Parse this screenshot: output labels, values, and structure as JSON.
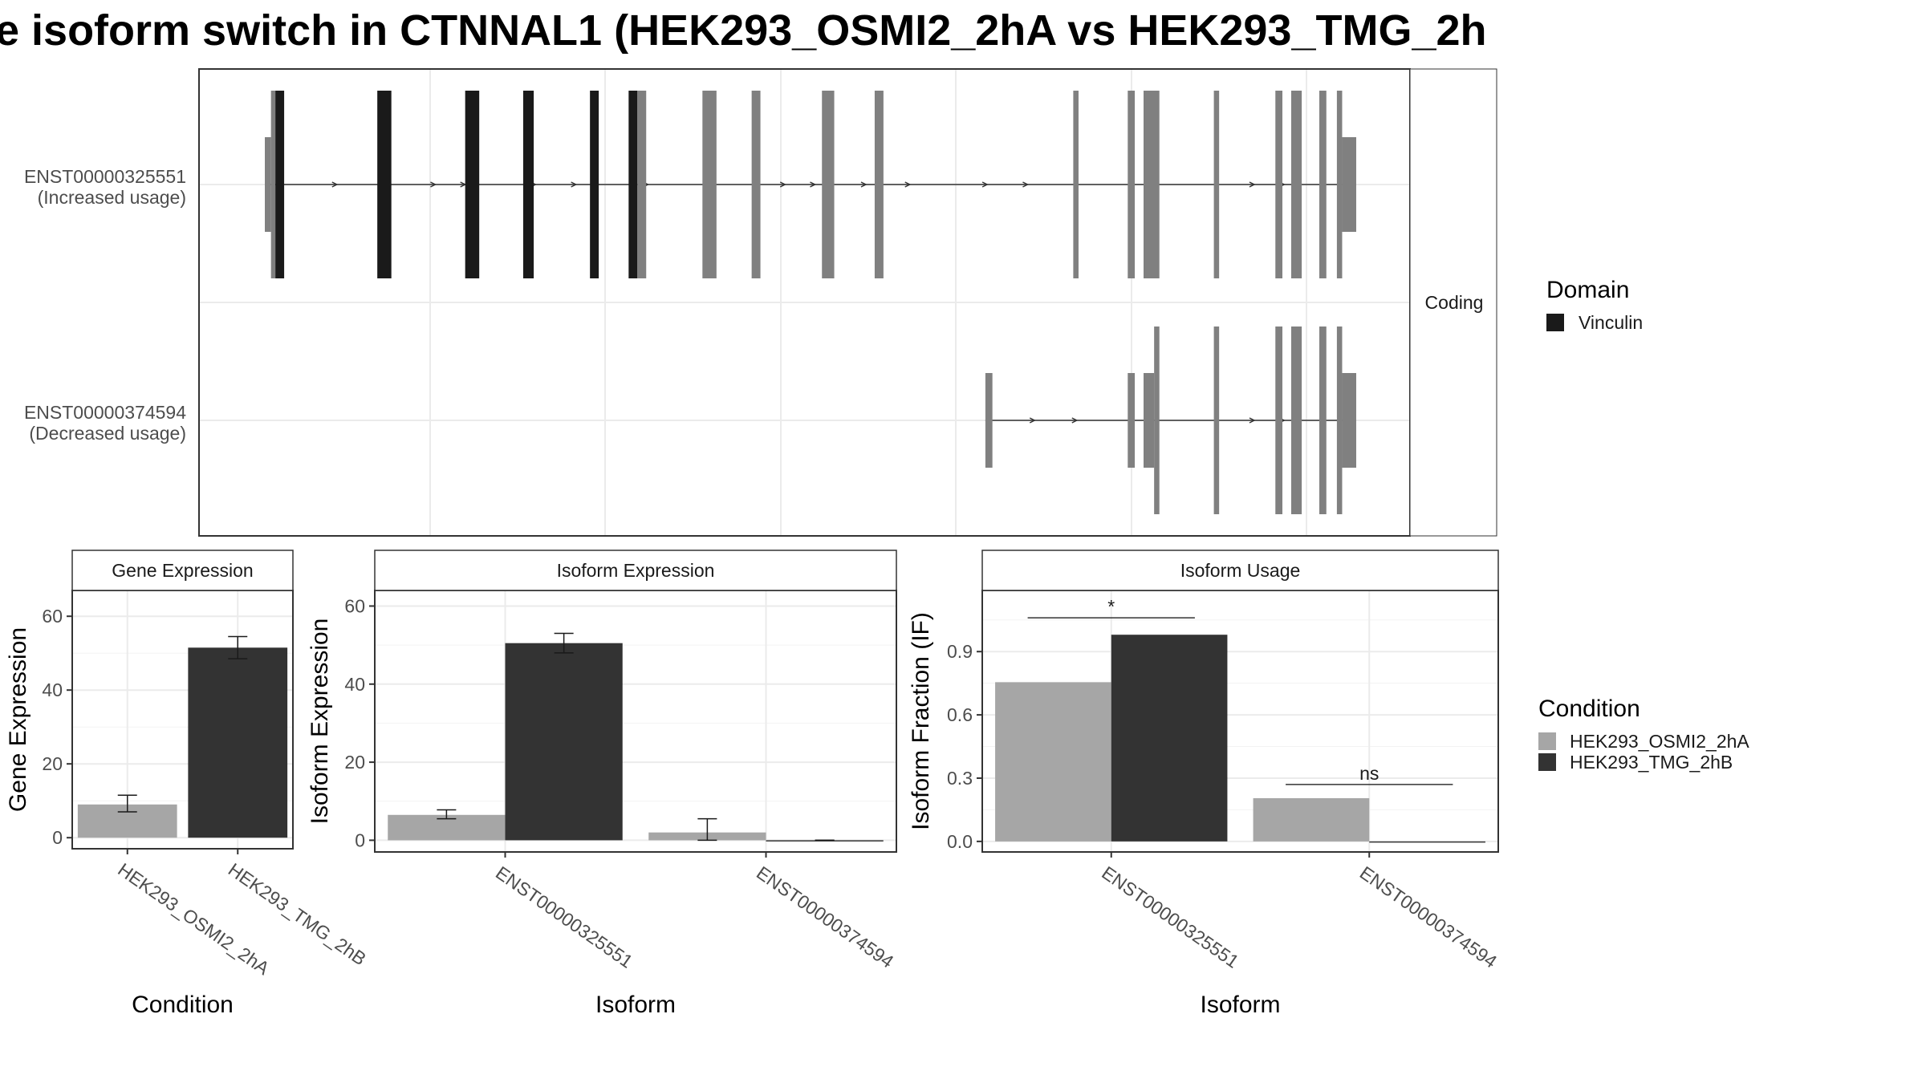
{
  "title": "e isoform switch in CTNNAL1 (HEK293_OSMI2_2hA vs HEK293_TMG_2h",
  "colors": {
    "osmi": "#a6a6a6",
    "tmg": "#333333",
    "domain": "#1a1a1a",
    "exon": "#808080",
    "grid": "#ebebeb",
    "strip": "#ffffff"
  },
  "structure": {
    "strip_label": "Coding",
    "legend_title": "Domain",
    "legend_item": "Vinculin",
    "isoforms": [
      {
        "id": "ENST00000325551",
        "usage": "(Increased usage)",
        "exons": [
          {
            "start": 0.0,
            "end": 0.35,
            "kind": "utr",
            "color": "exon"
          },
          {
            "start": 0.35,
            "end": 0.6,
            "kind": "cds",
            "color": "exon"
          },
          {
            "start": 0.6,
            "end": 1.1,
            "kind": "cds",
            "color": "domain"
          },
          {
            "start": 6.4,
            "end": 7.2,
            "kind": "cds",
            "color": "domain"
          },
          {
            "start": 11.4,
            "end": 12.2,
            "kind": "cds",
            "color": "domain"
          },
          {
            "start": 14.7,
            "end": 15.3,
            "kind": "cds",
            "color": "domain"
          },
          {
            "start": 18.5,
            "end": 19.0,
            "kind": "cds",
            "color": "domain"
          },
          {
            "start": 20.7,
            "end": 21.2,
            "kind": "cds",
            "color": "domain"
          },
          {
            "start": 21.2,
            "end": 21.7,
            "kind": "cds",
            "color": "exon"
          },
          {
            "start": 24.9,
            "end": 25.7,
            "kind": "cds",
            "color": "exon"
          },
          {
            "start": 27.7,
            "end": 28.2,
            "kind": "cds",
            "color": "exon"
          },
          {
            "start": 31.7,
            "end": 32.4,
            "kind": "cds",
            "color": "exon"
          },
          {
            "start": 34.7,
            "end": 35.2,
            "kind": "cds",
            "color": "exon"
          },
          {
            "start": 46.0,
            "end": 46.3,
            "kind": "cds",
            "color": "exon"
          },
          {
            "start": 49.1,
            "end": 49.5,
            "kind": "cds",
            "color": "exon"
          },
          {
            "start": 50.0,
            "end": 50.9,
            "kind": "cds",
            "color": "exon"
          },
          {
            "start": 54.0,
            "end": 54.3,
            "kind": "cds",
            "color": "exon"
          },
          {
            "start": 57.5,
            "end": 57.9,
            "kind": "cds",
            "color": "exon"
          },
          {
            "start": 58.4,
            "end": 59.0,
            "kind": "cds",
            "color": "exon"
          },
          {
            "start": 60.0,
            "end": 60.4,
            "kind": "cds",
            "color": "exon"
          },
          {
            "start": 61.0,
            "end": 61.3,
            "kind": "cds",
            "color": "exon"
          },
          {
            "start": 61.3,
            "end": 62.1,
            "kind": "utr",
            "color": "exon"
          }
        ],
        "arrows": [
          4.1,
          9.7,
          11.4,
          15.4,
          17.7,
          21.8,
          29.6,
          31.3,
          34.2,
          36.7,
          41.1,
          43.4,
          56.3,
          58.0
        ]
      },
      {
        "id": "ENST00000374594",
        "usage": "(Decreased usage)",
        "exons": [
          {
            "start": 41.0,
            "end": 41.4,
            "kind": "utr",
            "color": "exon"
          },
          {
            "start": 49.1,
            "end": 49.5,
            "kind": "utr",
            "color": "exon"
          },
          {
            "start": 50.0,
            "end": 50.6,
            "kind": "utr",
            "color": "exon"
          },
          {
            "start": 50.6,
            "end": 50.9,
            "kind": "cds",
            "color": "exon"
          },
          {
            "start": 54.0,
            "end": 54.3,
            "kind": "cds",
            "color": "exon"
          },
          {
            "start": 57.5,
            "end": 57.9,
            "kind": "cds",
            "color": "exon"
          },
          {
            "start": 58.4,
            "end": 59.0,
            "kind": "cds",
            "color": "exon"
          },
          {
            "start": 60.0,
            "end": 60.4,
            "kind": "cds",
            "color": "exon"
          },
          {
            "start": 61.0,
            "end": 61.3,
            "kind": "cds",
            "color": "exon"
          },
          {
            "start": 61.3,
            "end": 62.1,
            "kind": "utr",
            "color": "exon"
          }
        ],
        "arrows": [
          43.8,
          46.2,
          56.3,
          58.0
        ]
      }
    ]
  },
  "chart_data": [
    {
      "type": "bar",
      "title": "Gene Expression",
      "xlabel": "Condition",
      "ylabel": "Gene Expression",
      "categories": [
        "HEK293_OSMI2_2hA",
        "HEK293_TMG_2hB"
      ],
      "values": [
        9,
        51.5
      ],
      "error_low": [
        7,
        48.5
      ],
      "error_high": [
        11.5,
        54.5
      ],
      "ylim": [
        -3,
        67
      ],
      "yticks": [
        0,
        20,
        40,
        60
      ]
    },
    {
      "type": "bar",
      "title": "Isoform Expression",
      "xlabel": "Isoform",
      "ylabel": "Isoform Expression",
      "categories": [
        "ENST00000325551",
        "ENST00000374594"
      ],
      "series": [
        {
          "name": "HEK293_OSMI2_2hA",
          "values": [
            6.5,
            2
          ],
          "error_low": [
            5.5,
            0
          ],
          "error_high": [
            7.8,
            5.5
          ]
        },
        {
          "name": "HEK293_TMG_2hB",
          "values": [
            50.5,
            0
          ],
          "error_low": [
            48,
            0
          ],
          "error_high": [
            53,
            0
          ]
        }
      ],
      "ylim": [
        -3,
        64
      ],
      "yticks": [
        0,
        20,
        40,
        60
      ]
    },
    {
      "type": "bar",
      "title": "Isoform Usage",
      "xlabel": "Isoform",
      "ylabel": "Isoform Fraction (IF)",
      "categories": [
        "ENST00000325551",
        "ENST00000374594"
      ],
      "series": [
        {
          "name": "HEK293_OSMI2_2hA",
          "values": [
            0.755,
            0.205
          ]
        },
        {
          "name": "HEK293_TMG_2hB",
          "values": [
            0.98,
            0
          ]
        }
      ],
      "significance": [
        "*",
        "ns"
      ],
      "ylim": [
        -0.05,
        1.19
      ],
      "yticks": [
        0.0,
        0.3,
        0.6,
        0.9
      ],
      "ytick_labels": [
        "0.0",
        "0.3",
        "0.6",
        "0.9"
      ]
    }
  ],
  "legend": {
    "title": "Condition",
    "items": [
      {
        "label": "HEK293_OSMI2_2hA",
        "color": "#a6a6a6"
      },
      {
        "label": "HEK293_TMG_2hB",
        "color": "#333333"
      }
    ]
  }
}
